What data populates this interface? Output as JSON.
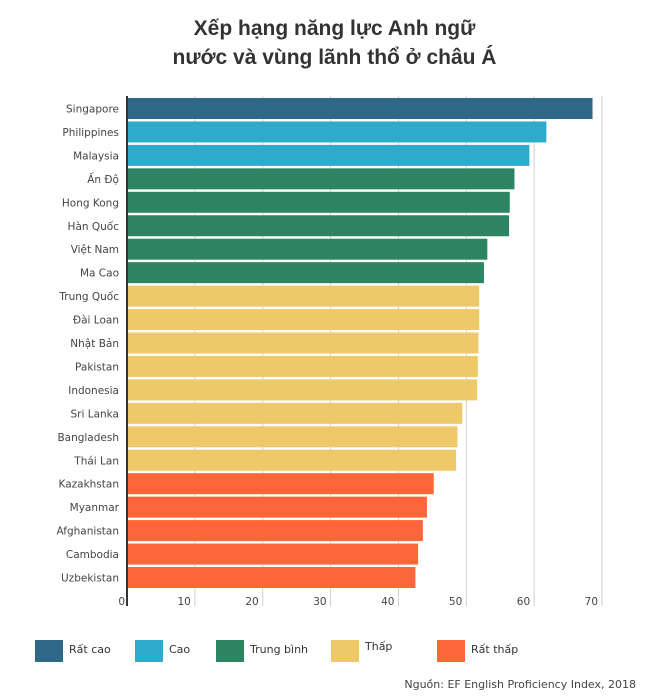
{
  "chart_data": {
    "type": "bar",
    "orientation": "horizontal",
    "title": [
      "Xếp hạng năng lực Anh ngữ",
      "nước và vùng lãnh thổ ở châu Á"
    ],
    "categories": [
      "Singapore",
      "Philippines",
      "Malaysia",
      "Ấn Độ",
      "Hong Kong",
      "Hàn Quốc",
      "Việt Nam",
      "Ma Cao",
      "Trung Quốc",
      "Đài Loan",
      "Nhật Bản",
      "Pakistan",
      "Indonesia",
      "Sri Lanka",
      "Bangladesh",
      "Thái Lan",
      "Kazakhstan",
      "Myanmar",
      "Afghanistan",
      "Cambodia",
      "Uzbekistan"
    ],
    "values": [
      68.6,
      61.8,
      59.3,
      57.1,
      56.4,
      56.3,
      53.1,
      52.6,
      51.9,
      51.9,
      51.8,
      51.7,
      51.6,
      49.4,
      48.7,
      48.5,
      45.2,
      44.2,
      43.6,
      42.9,
      42.5
    ],
    "levels": [
      0,
      1,
      1,
      2,
      2,
      2,
      2,
      2,
      3,
      3,
      3,
      3,
      3,
      3,
      3,
      3,
      4,
      4,
      4,
      4,
      4
    ],
    "xlim": [
      0,
      70
    ],
    "xticks": [
      "0",
      "10",
      "20",
      "30",
      "40",
      "50",
      "60",
      "70"
    ],
    "grid": true,
    "legend": {
      "placement": "bottom",
      "entries": [
        {
          "label": "Rất cao",
          "color": "#2e6886"
        },
        {
          "label": "Cao",
          "color": "#2eaacb"
        },
        {
          "label": "Trung bình",
          "color": "#2d8462"
        },
        {
          "label": "Thấp",
          "color": "#eec96a"
        },
        {
          "label": "Rất thấp",
          "color": "#fd6638"
        }
      ]
    },
    "source": "Nguồn: EF English Proficiency Index, 2018"
  }
}
